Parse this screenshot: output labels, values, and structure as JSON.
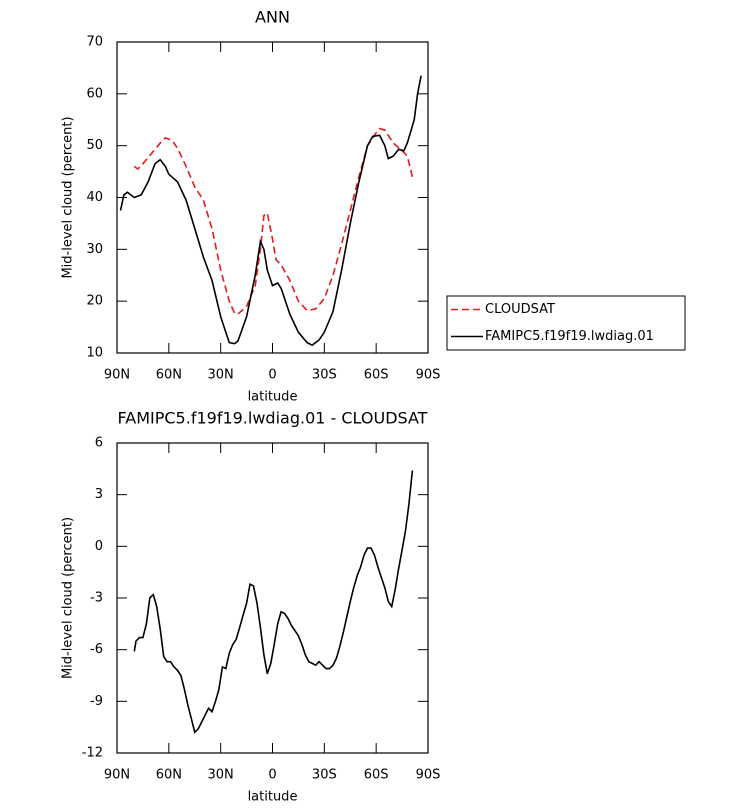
{
  "chart_data": [
    {
      "type": "line",
      "title": "ANN",
      "xlabel": "latitude",
      "ylabel": "Mid-level cloud (percent)",
      "xlim": [
        90,
        -90
      ],
      "xticks": [
        {
          "value": 90,
          "label": "90N"
        },
        {
          "value": 60,
          "label": "60N"
        },
        {
          "value": 30,
          "label": "30N"
        },
        0,
        {
          "value": -30,
          "label": "30S"
        },
        {
          "value": -60,
          "label": "60S"
        },
        {
          "value": -90,
          "label": "90S"
        }
      ],
      "ylim": [
        10,
        70
      ],
      "yticks": [
        10,
        20,
        30,
        40,
        50,
        60,
        70
      ],
      "legend": "right",
      "series": [
        {
          "name": "CLOUDSAT",
          "color": "#e41a1c",
          "linestyle": "dashed",
          "x": [
            80,
            78,
            75,
            70,
            65,
            62,
            58,
            55,
            50,
            45,
            40,
            35,
            30,
            25,
            22,
            20,
            15,
            10,
            7,
            5,
            3,
            0,
            -2,
            -5,
            -10,
            -15,
            -20,
            -25,
            -30,
            -35,
            -40,
            -45,
            -50,
            -55,
            -60,
            -62,
            -65,
            -70,
            -75,
            -78,
            -81
          ],
          "values": [
            46,
            45.5,
            46.5,
            48.5,
            50.5,
            51.5,
            51,
            49.5,
            46,
            42,
            39.5,
            34,
            26,
            20,
            17.7,
            17.5,
            19,
            23,
            30,
            36.5,
            37,
            32,
            28,
            27,
            24,
            20,
            18.2,
            18.5,
            20.5,
            25,
            31,
            37.5,
            44,
            50,
            52.5,
            53.3,
            53,
            50.5,
            49,
            48,
            44
          ]
        },
        {
          "name": "FAMIPC5.f19f19.lwdiag.01",
          "color": "#000000",
          "linestyle": "solid",
          "x": [
            88,
            86,
            84,
            80,
            76,
            72,
            68,
            65,
            62,
            60,
            55,
            50,
            45,
            40,
            35,
            30,
            27,
            25,
            22,
            20,
            15,
            10,
            7,
            5,
            3,
            0,
            -3,
            -5,
            -10,
            -15,
            -20,
            -23,
            -27,
            -30,
            -35,
            -40,
            -45,
            -50,
            -55,
            -58,
            -62,
            -65,
            -67,
            -70,
            -73,
            -76,
            -78,
            -82,
            -84,
            -86
          ],
          "values": [
            37.5,
            40.5,
            41,
            40,
            40.5,
            43,
            46.5,
            47.3,
            46,
            44.5,
            43,
            39.5,
            34,
            28.5,
            24,
            17,
            14,
            12,
            11.8,
            12.3,
            17,
            25,
            31.5,
            30,
            26,
            23,
            23.5,
            22.5,
            17.5,
            14,
            12,
            11.5,
            12.5,
            14,
            18,
            26,
            35,
            43,
            50,
            51.8,
            52,
            50,
            47.5,
            48,
            49.3,
            49,
            50.5,
            55,
            60,
            63.5
          ]
        }
      ]
    },
    {
      "type": "line",
      "title": "FAMIPC5.f19f19.lwdiag.01 - CLOUDSAT",
      "xlabel": "latitude",
      "ylabel": "Mid-level cloud (percent)",
      "xlim": [
        90,
        -90
      ],
      "xticks": [
        {
          "value": 90,
          "label": "90N"
        },
        {
          "value": 60,
          "label": "60N"
        },
        {
          "value": 30,
          "label": "30N"
        },
        0,
        {
          "value": -30,
          "label": "30S"
        },
        {
          "value": -60,
          "label": "60S"
        },
        {
          "value": -90,
          "label": "90S"
        }
      ],
      "ylim": [
        -12,
        6
      ],
      "yticks": [
        -12,
        -9,
        -6,
        -3,
        0,
        3,
        6
      ],
      "series": [
        {
          "color": "#000000",
          "linestyle": "solid",
          "x": [
            80,
            79,
            77,
            75,
            73,
            71,
            69,
            67,
            65,
            63,
            61,
            59,
            57,
            55,
            53,
            51,
            49,
            47,
            45,
            43,
            41,
            39,
            37,
            35,
            33,
            31,
            29,
            27,
            25,
            23,
            21,
            19,
            17,
            15,
            13,
            11,
            9,
            7,
            5,
            3,
            1,
            -1,
            -3,
            -5,
            -7,
            -9,
            -11,
            -13,
            -15,
            -17,
            -19,
            -21,
            -23,
            -25,
            -27,
            -29,
            -31,
            -33,
            -35,
            -37,
            -39,
            -41,
            -43,
            -45,
            -47,
            -49,
            -51,
            -53,
            -55,
            -57,
            -59,
            -61,
            -63,
            -65,
            -67,
            -69,
            -71,
            -73,
            -75,
            -77,
            -79,
            -81
          ],
          "values": [
            -6.1,
            -5.5,
            -5.3,
            -5.3,
            -4.5,
            -3,
            -2.8,
            -3.5,
            -4.8,
            -6.4,
            -6.7,
            -6.7,
            -7,
            -7.2,
            -7.5,
            -8.3,
            -9.2,
            -10,
            -10.8,
            -10.6,
            -10.2,
            -9.8,
            -9.4,
            -9.6,
            -9,
            -8.3,
            -7,
            -7.1,
            -6.2,
            -5.7,
            -5.4,
            -4.7,
            -4,
            -3.3,
            -2.2,
            -2.3,
            -3.3,
            -4.7,
            -6.3,
            -7.4,
            -6.8,
            -5.7,
            -4.5,
            -3.8,
            -3.9,
            -4.2,
            -4.6,
            -4.9,
            -5.2,
            -5.7,
            -6.3,
            -6.7,
            -6.8,
            -6.9,
            -6.7,
            -6.9,
            -7.1,
            -7.1,
            -6.9,
            -6.5,
            -5.8,
            -5,
            -4.1,
            -3.2,
            -2.4,
            -1.7,
            -1.2,
            -0.5,
            -0.1,
            -0.1,
            -0.5,
            -1.2,
            -1.8,
            -2.4,
            -3.2,
            -3.5,
            -2.5,
            -1.3,
            -0.2,
            0.9,
            2.5,
            4.4
          ]
        }
      ]
    }
  ]
}
